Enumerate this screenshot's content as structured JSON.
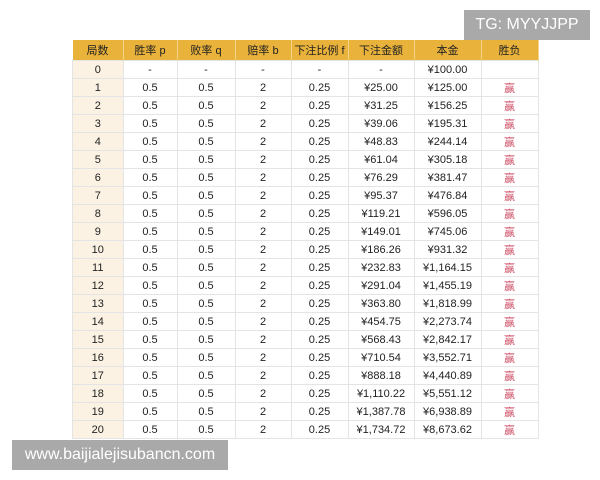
{
  "headers": [
    "局数",
    "胜率 p",
    "败率 q",
    "赔率 b",
    "下注比例 f",
    "下注金额",
    "本金",
    "胜负"
  ],
  "rows": [
    [
      "0",
      "-",
      "-",
      "-",
      "-",
      "-",
      "¥100.00",
      ""
    ],
    [
      "1",
      "0.5",
      "0.5",
      "2",
      "0.25",
      "¥25.00",
      "¥125.00",
      "赢"
    ],
    [
      "2",
      "0.5",
      "0.5",
      "2",
      "0.25",
      "¥31.25",
      "¥156.25",
      "赢"
    ],
    [
      "3",
      "0.5",
      "0.5",
      "2",
      "0.25",
      "¥39.06",
      "¥195.31",
      "赢"
    ],
    [
      "4",
      "0.5",
      "0.5",
      "2",
      "0.25",
      "¥48.83",
      "¥244.14",
      "赢"
    ],
    [
      "5",
      "0.5",
      "0.5",
      "2",
      "0.25",
      "¥61.04",
      "¥305.18",
      "赢"
    ],
    [
      "6",
      "0.5",
      "0.5",
      "2",
      "0.25",
      "¥76.29",
      "¥381.47",
      "赢"
    ],
    [
      "7",
      "0.5",
      "0.5",
      "2",
      "0.25",
      "¥95.37",
      "¥476.84",
      "赢"
    ],
    [
      "8",
      "0.5",
      "0.5",
      "2",
      "0.25",
      "¥119.21",
      "¥596.05",
      "赢"
    ],
    [
      "9",
      "0.5",
      "0.5",
      "2",
      "0.25",
      "¥149.01",
      "¥745.06",
      "赢"
    ],
    [
      "10",
      "0.5",
      "0.5",
      "2",
      "0.25",
      "¥186.26",
      "¥931.32",
      "赢"
    ],
    [
      "11",
      "0.5",
      "0.5",
      "2",
      "0.25",
      "¥232.83",
      "¥1,164.15",
      "赢"
    ],
    [
      "12",
      "0.5",
      "0.5",
      "2",
      "0.25",
      "¥291.04",
      "¥1,455.19",
      "赢"
    ],
    [
      "13",
      "0.5",
      "0.5",
      "2",
      "0.25",
      "¥363.80",
      "¥1,818.99",
      "赢"
    ],
    [
      "14",
      "0.5",
      "0.5",
      "2",
      "0.25",
      "¥454.75",
      "¥2,273.74",
      "赢"
    ],
    [
      "15",
      "0.5",
      "0.5",
      "2",
      "0.25",
      "¥568.43",
      "¥2,842.17",
      "赢"
    ],
    [
      "16",
      "0.5",
      "0.5",
      "2",
      "0.25",
      "¥710.54",
      "¥3,552.71",
      "赢"
    ],
    [
      "17",
      "0.5",
      "0.5",
      "2",
      "0.25",
      "¥888.18",
      "¥4,440.89",
      "赢"
    ],
    [
      "18",
      "0.5",
      "0.5",
      "2",
      "0.25",
      "¥1,110.22",
      "¥5,551.12",
      "赢"
    ],
    [
      "19",
      "0.5",
      "0.5",
      "2",
      "0.25",
      "¥1,387.78",
      "¥6,938.89",
      "赢"
    ],
    [
      "20",
      "0.5",
      "0.5",
      "2",
      "0.25",
      "¥1,734.72",
      "¥8,673.62",
      "赢"
    ]
  ],
  "watermark_top": "TG: MYYJJPP",
  "watermark_bottom": "www.baijialejisubancn.com",
  "colors": {
    "header": "#e9b23a",
    "win": "#d0546a",
    "first_col": "#fbf2e4"
  }
}
